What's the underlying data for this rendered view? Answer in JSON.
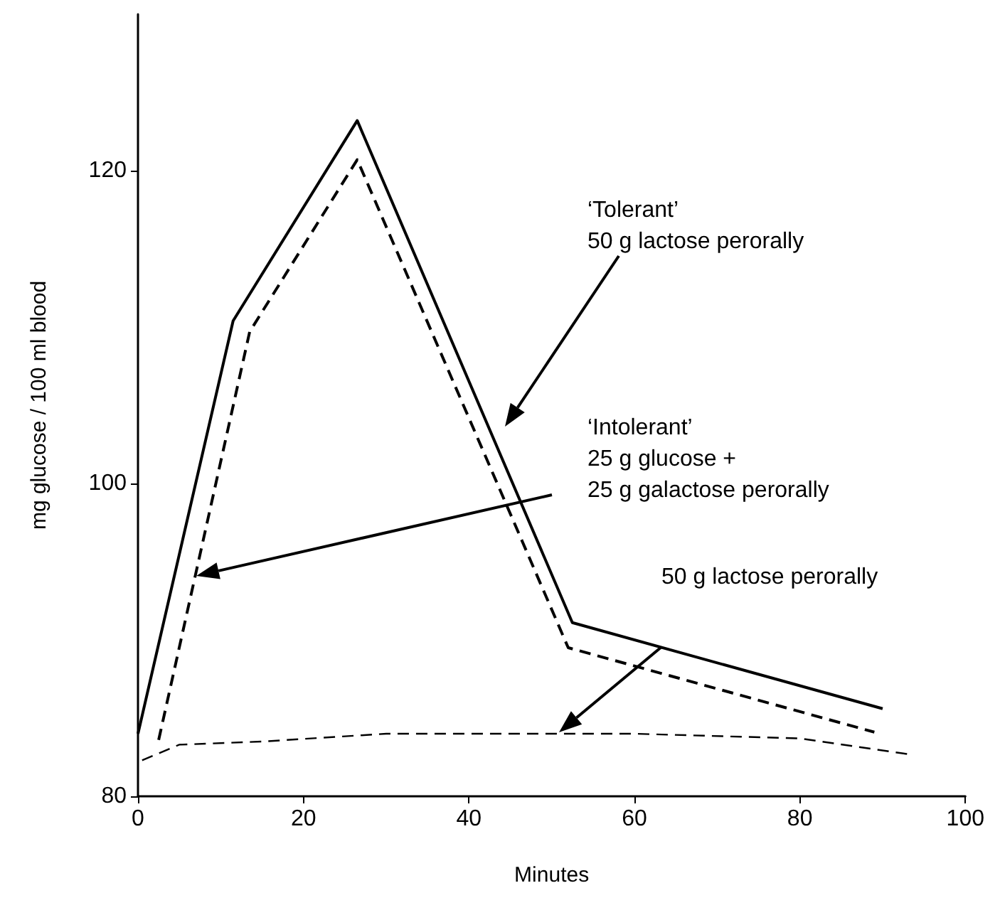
{
  "chart_data": {
    "type": "line",
    "xlabel": "Minutes",
    "ylabel": "mg glucose / 100 ml blood",
    "xlim": [
      0,
      100
    ],
    "xticks": [
      0,
      20,
      40,
      60,
      80,
      100
    ],
    "ylim": [
      80,
      130
    ],
    "yticks": [
      80,
      100,
      120
    ],
    "grid": false,
    "marker": "none",
    "series": [
      {
        "color": "#000000",
        "line_style": "solid",
        "x": [
          0,
          11.5,
          26.5,
          52.5,
          90
        ],
        "values": [
          84,
          110.4,
          123.2,
          91.1,
          85.6
        ]
      },
      {
        "color": "#000000",
        "line_style": "dashed",
        "x": [
          2.5,
          13.5,
          26.5,
          52,
          89
        ],
        "values": [
          83.6,
          109.7,
          120.7,
          89.5,
          84.1
        ]
      },
      {
        "color": "#000000",
        "line_style": "dashed",
        "x": [
          0.5,
          5,
          15,
          30,
          60,
          80,
          93
        ],
        "values": [
          82.3,
          83.3,
          83.5,
          84,
          84,
          83.7,
          82.7
        ]
      }
    ],
    "annotations": [
      "‘Tolerant’\n50 g lactose perorally",
      "‘Intolerant’\n25 g glucose +\n25 g galactose perorally",
      "50 g lactose perorally"
    ]
  }
}
